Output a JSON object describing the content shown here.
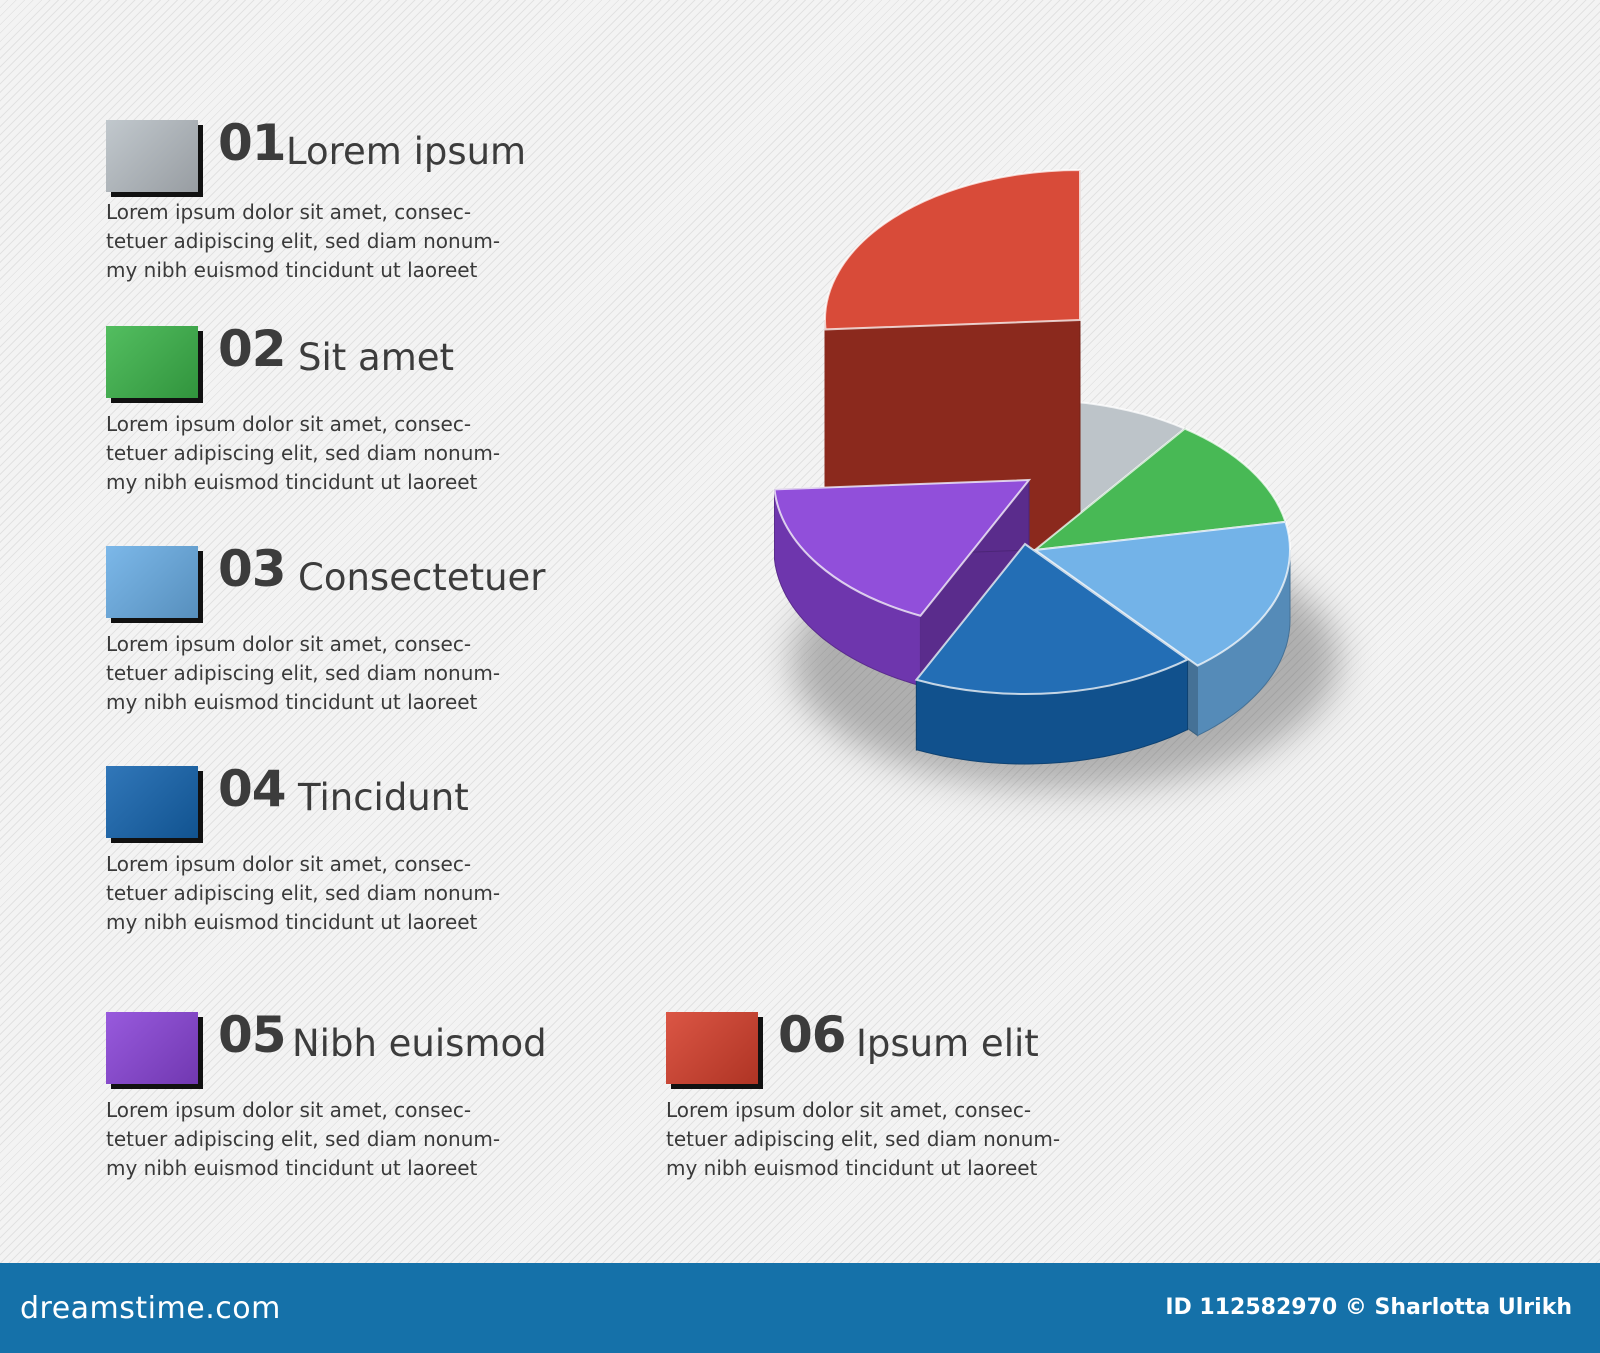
{
  "chart_data": {
    "type": "pie",
    "categories": [
      "Lorem ipsum",
      "Sit amet",
      "Consectetuer",
      "Tincidunt",
      "Nibh euismod",
      "Ipsum elit"
    ],
    "values": [
      10,
      12,
      17,
      18,
      17,
      26
    ],
    "colors": [
      "#b9c0c6",
      "#3cb54a",
      "#6aaee6",
      "#1565b0",
      "#8a44d8",
      "#d63f2c"
    ],
    "exploded_index": 5
  },
  "legend": [
    {
      "num": "01",
      "title": "Lorem ipsum",
      "desc": [
        "Lorem ipsum dolor sit amet, consec-",
        "tetuer adipiscing elit, sed diam nonum-",
        "my nibh euismod tincidunt ut laoreet"
      ],
      "swatch_color": "#b9c0c6"
    },
    {
      "num": "02",
      "title": "Sit amet",
      "desc": [
        "Lorem ipsum dolor sit amet, consec-",
        "tetuer adipiscing elit, sed diam nonum-",
        "my nibh euismod tincidunt ut laoreet"
      ],
      "swatch_color": "#3cb54a"
    },
    {
      "num": "03",
      "title": "Consectetuer",
      "desc": [
        "Lorem ipsum dolor sit amet, consec-",
        "tetuer adipiscing elit, sed diam nonum-",
        "my nibh euismod tincidunt ut laoreet"
      ],
      "swatch_color": "#6aaee6"
    },
    {
      "num": "04",
      "title": "Tincidunt",
      "desc": [
        "Lorem ipsum dolor sit amet, consec-",
        "tetuer adipiscing elit, sed diam nonum-",
        "my nibh euismod tincidunt ut laoreet"
      ],
      "swatch_color": "#1565b0"
    },
    {
      "num": "05",
      "title": "Nibh euismod",
      "desc": [
        "Lorem ipsum dolor sit amet, consec-",
        "tetuer adipiscing elit, sed diam nonum-",
        "my nibh euismod tincidunt ut laoreet"
      ],
      "swatch_color": "#8a44d8"
    },
    {
      "num": "06",
      "title": "Ipsum elit",
      "desc": [
        "Lorem ipsum dolor sit amet, consec-",
        "tetuer adipiscing elit, sed diam nonum-",
        "my nibh euismod tincidunt ut laoreet"
      ],
      "swatch_color": "#d63f2c"
    }
  ],
  "footer": {
    "brand": "dreamstime.com",
    "credit": "ID 112582970 © Sharlotta Ulrikh"
  }
}
